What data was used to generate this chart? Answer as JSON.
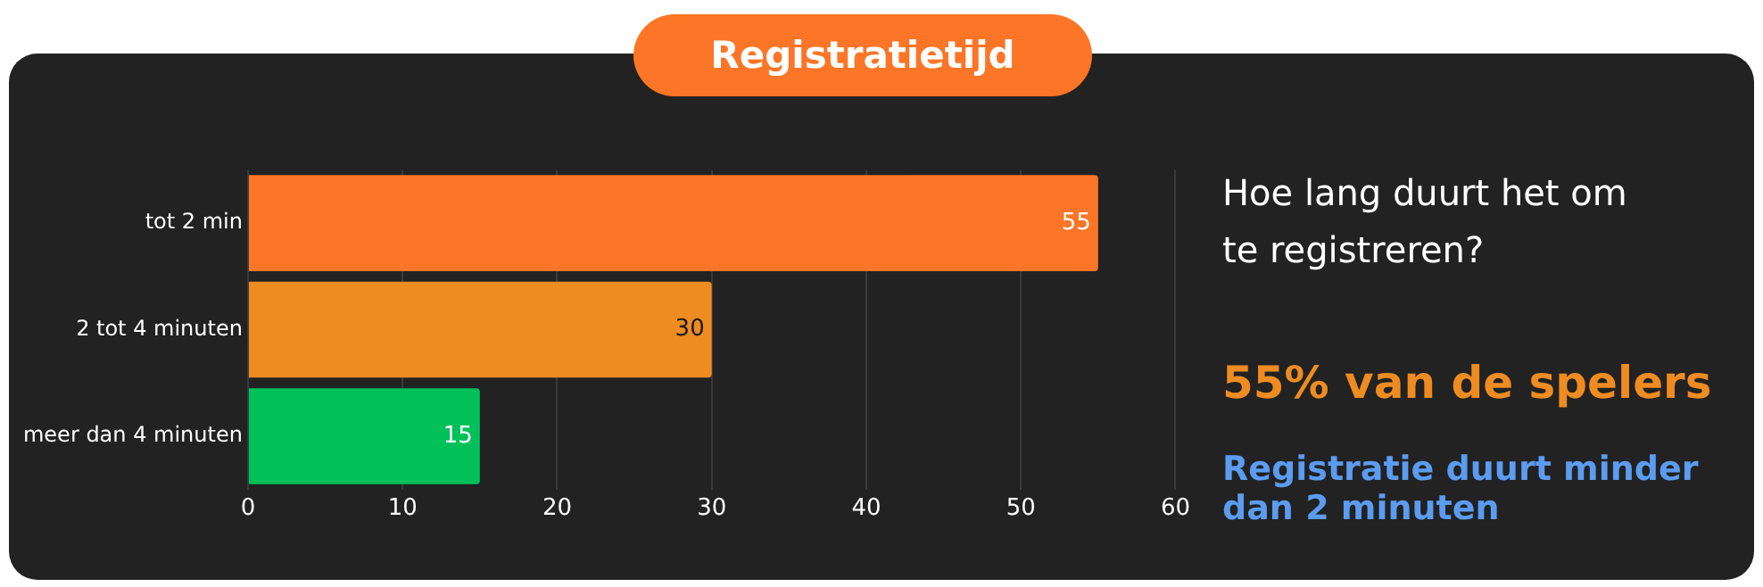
{
  "chart_data": {
    "type": "bar",
    "orientation": "horizontal",
    "title": "Registratietijd",
    "categories": [
      "tot 2 min",
      "2 tot 4 minuten",
      "meer dan 4 minuten"
    ],
    "values": [
      55,
      30,
      15
    ],
    "colors": [
      "#fd7526",
      "#ee8c22",
      "#00c05a"
    ],
    "xlim": [
      0,
      60
    ],
    "xticks": [
      0,
      10,
      20,
      30,
      40,
      50,
      60
    ],
    "grid": "x",
    "data_labels": true,
    "legend": false,
    "annotations": [
      "Hoe lang duurt het om te registreren?",
      "55% van de spelers",
      "Registratie duurt minder dan 2 minuten"
    ]
  }
}
